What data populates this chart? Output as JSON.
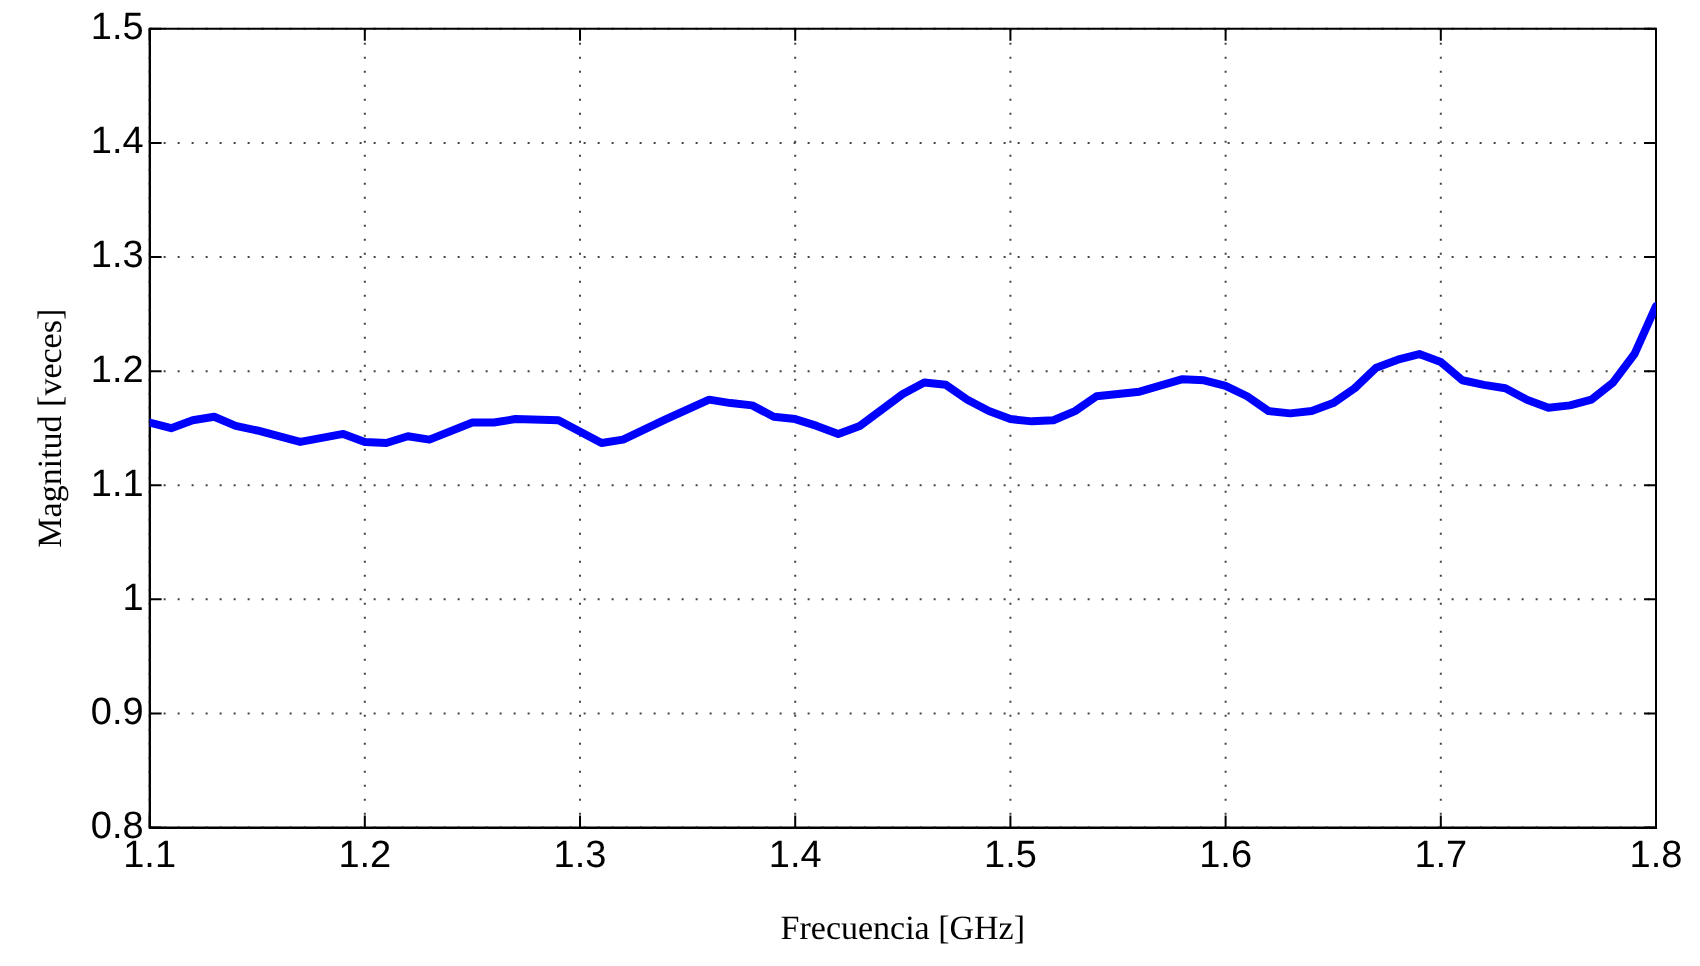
{
  "chart_data": {
    "type": "line",
    "xlabel": "Frecuencia [GHz]",
    "ylabel": "Magnitud [veces]",
    "x": [
      1.1,
      1.11,
      1.12,
      1.13,
      1.14,
      1.15,
      1.17,
      1.19,
      1.2,
      1.21,
      1.22,
      1.23,
      1.25,
      1.26,
      1.27,
      1.29,
      1.31,
      1.32,
      1.34,
      1.36,
      1.37,
      1.38,
      1.39,
      1.4,
      1.41,
      1.42,
      1.43,
      1.45,
      1.46,
      1.47,
      1.48,
      1.49,
      1.5,
      1.51,
      1.52,
      1.53,
      1.54,
      1.55,
      1.56,
      1.58,
      1.59,
      1.6,
      1.61,
      1.62,
      1.63,
      1.64,
      1.65,
      1.66,
      1.67,
      1.68,
      1.69,
      1.7,
      1.71,
      1.72,
      1.73,
      1.74,
      1.75,
      1.76,
      1.77,
      1.78,
      1.79,
      1.8
    ],
    "series": [
      {
        "color": "#0000ff",
        "values": [
          1.155,
          1.15,
          1.157,
          1.16,
          1.152,
          1.148,
          1.138,
          1.145,
          1.138,
          1.137,
          1.143,
          1.14,
          1.155,
          1.155,
          1.158,
          1.157,
          1.137,
          1.14,
          1.158,
          1.175,
          1.172,
          1.17,
          1.16,
          1.158,
          1.152,
          1.145,
          1.152,
          1.18,
          1.19,
          1.188,
          1.175,
          1.165,
          1.158,
          1.156,
          1.157,
          1.165,
          1.178,
          1.18,
          1.182,
          1.193,
          1.192,
          1.187,
          1.178,
          1.165,
          1.163,
          1.165,
          1.172,
          1.185,
          1.203,
          1.21,
          1.215,
          1.208,
          1.192,
          1.188,
          1.185,
          1.175,
          1.168,
          1.17,
          1.175,
          1.19,
          1.215,
          1.257
        ]
      }
    ],
    "xlim": [
      1.1,
      1.8
    ],
    "xticks": [
      1.1,
      1.2,
      1.3,
      1.4,
      1.5,
      1.6,
      1.7,
      1.8
    ],
    "ylim": [
      0.8,
      1.5
    ],
    "yticks": [
      0.8,
      0.9,
      1,
      1.1,
      1.2,
      1.3,
      1.4,
      1.5
    ],
    "grid": true,
    "line_style": "solid",
    "marker": "none"
  }
}
